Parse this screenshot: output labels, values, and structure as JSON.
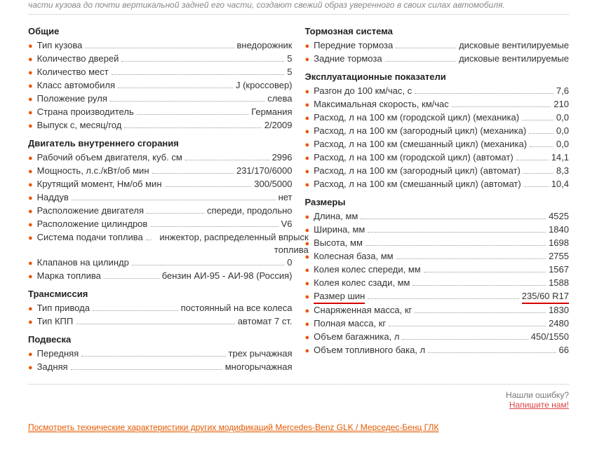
{
  "intro": "части кузова до почти вертикальной задней его части, создают свежий образ уверенного в своих силах автомобиля.",
  "left": [
    {
      "title": "Общие",
      "items": [
        {
          "label": "Тип кузова",
          "value": "внедорожник"
        },
        {
          "label": "Количество дверей",
          "value": "5"
        },
        {
          "label": "Количество мест",
          "value": "5"
        },
        {
          "label": "Класс автомобиля",
          "value": "J (кроссовер)"
        },
        {
          "label": "Положение руля",
          "value": "слева"
        },
        {
          "label": "Страна производитель",
          "value": "Германия"
        },
        {
          "label": "Выпуск с, месяц/год",
          "value": "2/2009"
        }
      ]
    },
    {
      "title": "Двигатель внутреннего сгорания",
      "items": [
        {
          "label": "Рабочий объем двигателя, куб. см",
          "value": "2996"
        },
        {
          "label": "Мощность, л.с./кВт/об мин",
          "value": "231/170/6000"
        },
        {
          "label": "Крутящий момент, Нм/об мин",
          "value": "300/5000"
        },
        {
          "label": "Наддув",
          "value": "нет"
        },
        {
          "label": "Расположение двигателя",
          "value": "спереди, продольно"
        },
        {
          "label": "Расположение цилиндров",
          "value": "V6"
        },
        {
          "label": "Система подачи топлива",
          "value": "инжектор, распределенный впрыск топлива"
        },
        {
          "label": "Клапанов на цилиндр",
          "value": "0"
        },
        {
          "label": "Марка топлива",
          "value": "бензин АИ-95 - АИ-98 (Россия)"
        }
      ]
    },
    {
      "title": "Трансмиссия",
      "items": [
        {
          "label": "Тип привода",
          "value": "постоянный на все колеса"
        },
        {
          "label": "Тип КПП",
          "value": "автомат 7 ст."
        }
      ]
    },
    {
      "title": "Подвеска",
      "items": [
        {
          "label": "Передняя",
          "value": "трех рычажная"
        },
        {
          "label": "Задняя",
          "value": "многорычажная"
        }
      ]
    }
  ],
  "right": [
    {
      "title": "Тормозная система",
      "items": [
        {
          "label": "Передние тормоза",
          "value": "дисковые вентилируемые"
        },
        {
          "label": "Задние тормоза",
          "value": "дисковые вентилируемые"
        }
      ]
    },
    {
      "title": "Эксплуатационные показатели",
      "items": [
        {
          "label": "Разгон до 100 км/час, с",
          "value": "7,6"
        },
        {
          "label": "Максимальная скорость, км/час",
          "value": "210"
        },
        {
          "label": "Расход, л на 100 км (городской цикл) (механика)",
          "value": "0,0"
        },
        {
          "label": "Расход, л на 100 км (загородный цикл) (механика)",
          "value": "0,0"
        },
        {
          "label": "Расход, л на 100 км (смешанный цикл) (механика)",
          "value": "0,0"
        },
        {
          "label": "Расход, л на 100 км (городской цикл) (автомат)",
          "value": "14,1"
        },
        {
          "label": "Расход, л на 100 км (загородный цикл) (автомат)",
          "value": "8,3"
        },
        {
          "label": "Расход, л на 100 км (смешанный цикл) (автомат)",
          "value": "10,4"
        }
      ]
    },
    {
      "title": "Размеры",
      "items": [
        {
          "label": "Длина, мм",
          "value": "4525"
        },
        {
          "label": "Ширина, мм",
          "value": "1840"
        },
        {
          "label": "Высота, мм",
          "value": "1698"
        },
        {
          "label": "Колесная база, мм",
          "value": "2755"
        },
        {
          "label": "Колея колес спереди, мм",
          "value": "1567"
        },
        {
          "label": "Колея колес сзади, мм",
          "value": "1588"
        },
        {
          "label": "Размер шин",
          "value": "235/60 R17",
          "highlight": true
        },
        {
          "label": "Снаряженная масса, кг",
          "value": "1830"
        },
        {
          "label": "Полная масса, кг",
          "value": "2480"
        },
        {
          "label": "Объем багажника, л",
          "value": "450/1550"
        },
        {
          "label": "Объем топливного бака, л",
          "value": "66"
        }
      ]
    }
  ],
  "footer": {
    "question": "Нашли ошибку?",
    "write": "Напишите нам!"
  },
  "bottomLink": "Посмотреть технические характеристики других модификаций Mercedes-Benz GLK / Мерседес-Бенц ГЛК"
}
